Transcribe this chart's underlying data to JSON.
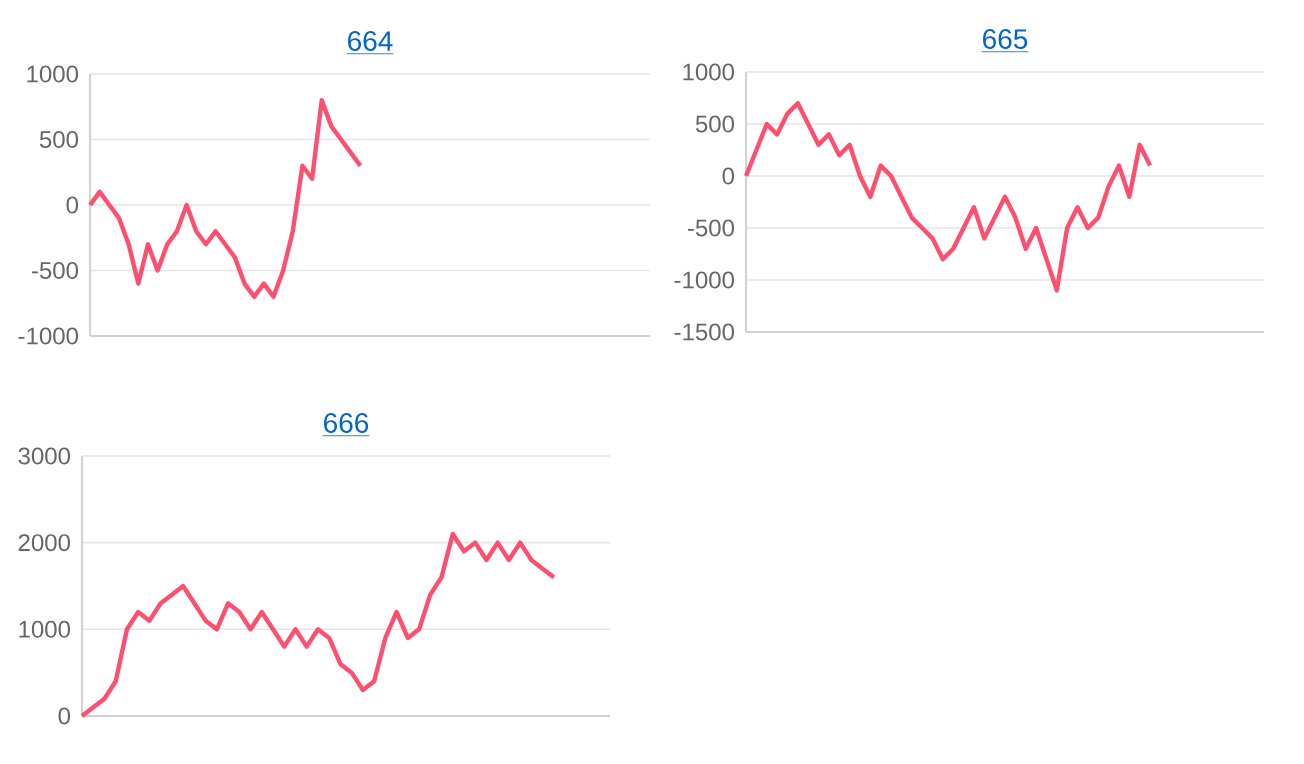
{
  "chart_data": [
    {
      "type": "line",
      "title": "664",
      "color": "#ff4f6f",
      "grid": "y",
      "tick_labels": "y",
      "ylim": [
        -1000,
        1000
      ],
      "yticks": [
        -1000,
        -500,
        0,
        500,
        1000
      ],
      "categories": [
        null,
        null,
        null,
        null,
        null,
        null,
        null,
        null,
        null,
        null,
        null,
        null,
        null,
        null,
        null,
        null,
        null,
        null,
        null,
        null,
        null,
        null,
        null,
        null,
        null,
        null,
        null,
        null,
        null,
        null,
        null,
        null,
        null,
        null,
        null,
        null,
        null,
        null,
        null,
        null,
        null,
        null,
        null,
        null,
        null,
        null,
        null,
        null,
        null,
        null,
        null,
        null,
        null,
        null,
        null,
        null,
        null,
        null,
        null
      ],
      "values": [
        0,
        100,
        0,
        -100,
        -300,
        -600,
        -300,
        -500,
        -300,
        -200,
        0,
        -200,
        -300,
        -200,
        -300,
        -400,
        -600,
        -700,
        -600,
        -700,
        -500,
        -200,
        300,
        200,
        800,
        600,
        500,
        400,
        300,
        null,
        null,
        null,
        null,
        null,
        null,
        null,
        null,
        null,
        null,
        null,
        null,
        null,
        null,
        null,
        null,
        null,
        null,
        null,
        null,
        null,
        null,
        null,
        null,
        null,
        null,
        null,
        null,
        null,
        null
      ]
    },
    {
      "type": "line",
      "title": "665",
      "color": "#ff4f6f",
      "grid": "y",
      "tick_labels": "y",
      "ylim": [
        -1500,
        1000
      ],
      "yticks": [
        -1500,
        -1000,
        -500,
        0,
        500,
        1000
      ],
      "categories": [
        null,
        null,
        null,
        null,
        null,
        null,
        null,
        null,
        null,
        null,
        null,
        null,
        null,
        null,
        null,
        null,
        null,
        null,
        null,
        null,
        null,
        null,
        null,
        null,
        null,
        null,
        null,
        null,
        null,
        null,
        null,
        null,
        null,
        null,
        null,
        null,
        null,
        null,
        null,
        null,
        null,
        null,
        null,
        null,
        null,
        null,
        null,
        null,
        null,
        null,
        null
      ],
      "values": [
        0,
        250,
        500,
        400,
        600,
        700,
        500,
        300,
        400,
        200,
        300,
        0,
        -200,
        100,
        0,
        -200,
        -400,
        -500,
        -600,
        -800,
        -700,
        -500,
        -300,
        -600,
        -400,
        -200,
        -400,
        -700,
        -500,
        -800,
        -1100,
        -500,
        -300,
        -500,
        -400,
        -100,
        100,
        -200,
        300,
        100,
        null,
        null,
        null,
        null,
        null,
        null,
        null,
        null,
        null,
        null,
        null
      ]
    },
    {
      "type": "line",
      "title": "666",
      "color": "#ff4f6f",
      "grid": "y",
      "tick_labels": "y",
      "ylim": [
        0,
        3000
      ],
      "yticks": [
        0,
        1000,
        2000,
        3000
      ],
      "categories": [
        null,
        null,
        null,
        null,
        null,
        null,
        null,
        null,
        null,
        null,
        null,
        null,
        null,
        null,
        null,
        null,
        null,
        null,
        null,
        null,
        null,
        null,
        null,
        null,
        null,
        null,
        null,
        null,
        null,
        null,
        null,
        null,
        null,
        null,
        null,
        null,
        null,
        null,
        null,
        null,
        null,
        null,
        null,
        null,
        null,
        null,
        null,
        null
      ],
      "values": [
        0,
        100,
        200,
        400,
        1000,
        1200,
        1100,
        1300,
        1400,
        1500,
        1300,
        1100,
        1000,
        1300,
        1200,
        1000,
        1200,
        1000,
        800,
        1000,
        800,
        1000,
        900,
        600,
        500,
        300,
        400,
        900,
        1200,
        900,
        1000,
        1400,
        1600,
        2100,
        1900,
        2000,
        1800,
        2000,
        1800,
        2000,
        1800,
        1700,
        1600,
        null,
        null,
        null,
        null,
        null
      ]
    }
  ]
}
